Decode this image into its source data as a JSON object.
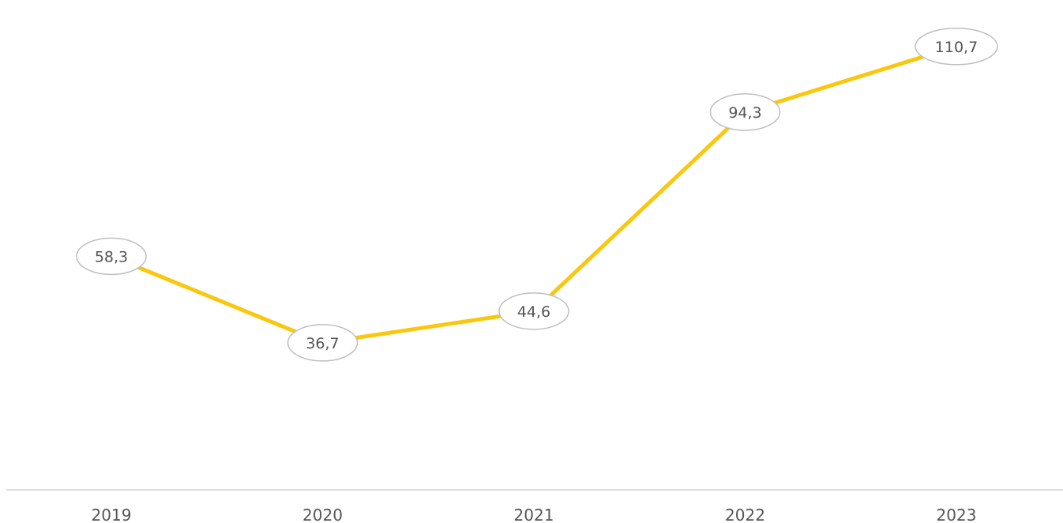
{
  "chart_data": {
    "type": "line",
    "title": "",
    "xlabel": "",
    "ylabel": "",
    "categories": [
      "2019",
      "2020",
      "2021",
      "2022",
      "2023"
    ],
    "series": [
      {
        "values": [
          58.3,
          36.7,
          44.6,
          94.3,
          110.7
        ],
        "labels": [
          "58,3",
          "36,7",
          "44,6",
          "94,3",
          "110,7"
        ],
        "color": "#F9C80E"
      }
    ],
    "ylim": [
      0,
      115
    ],
    "grid": false,
    "legend": "none",
    "axis_color": "#d0d0d0",
    "label_border_color": "#bfbfbf",
    "text_color": "#555555"
  }
}
